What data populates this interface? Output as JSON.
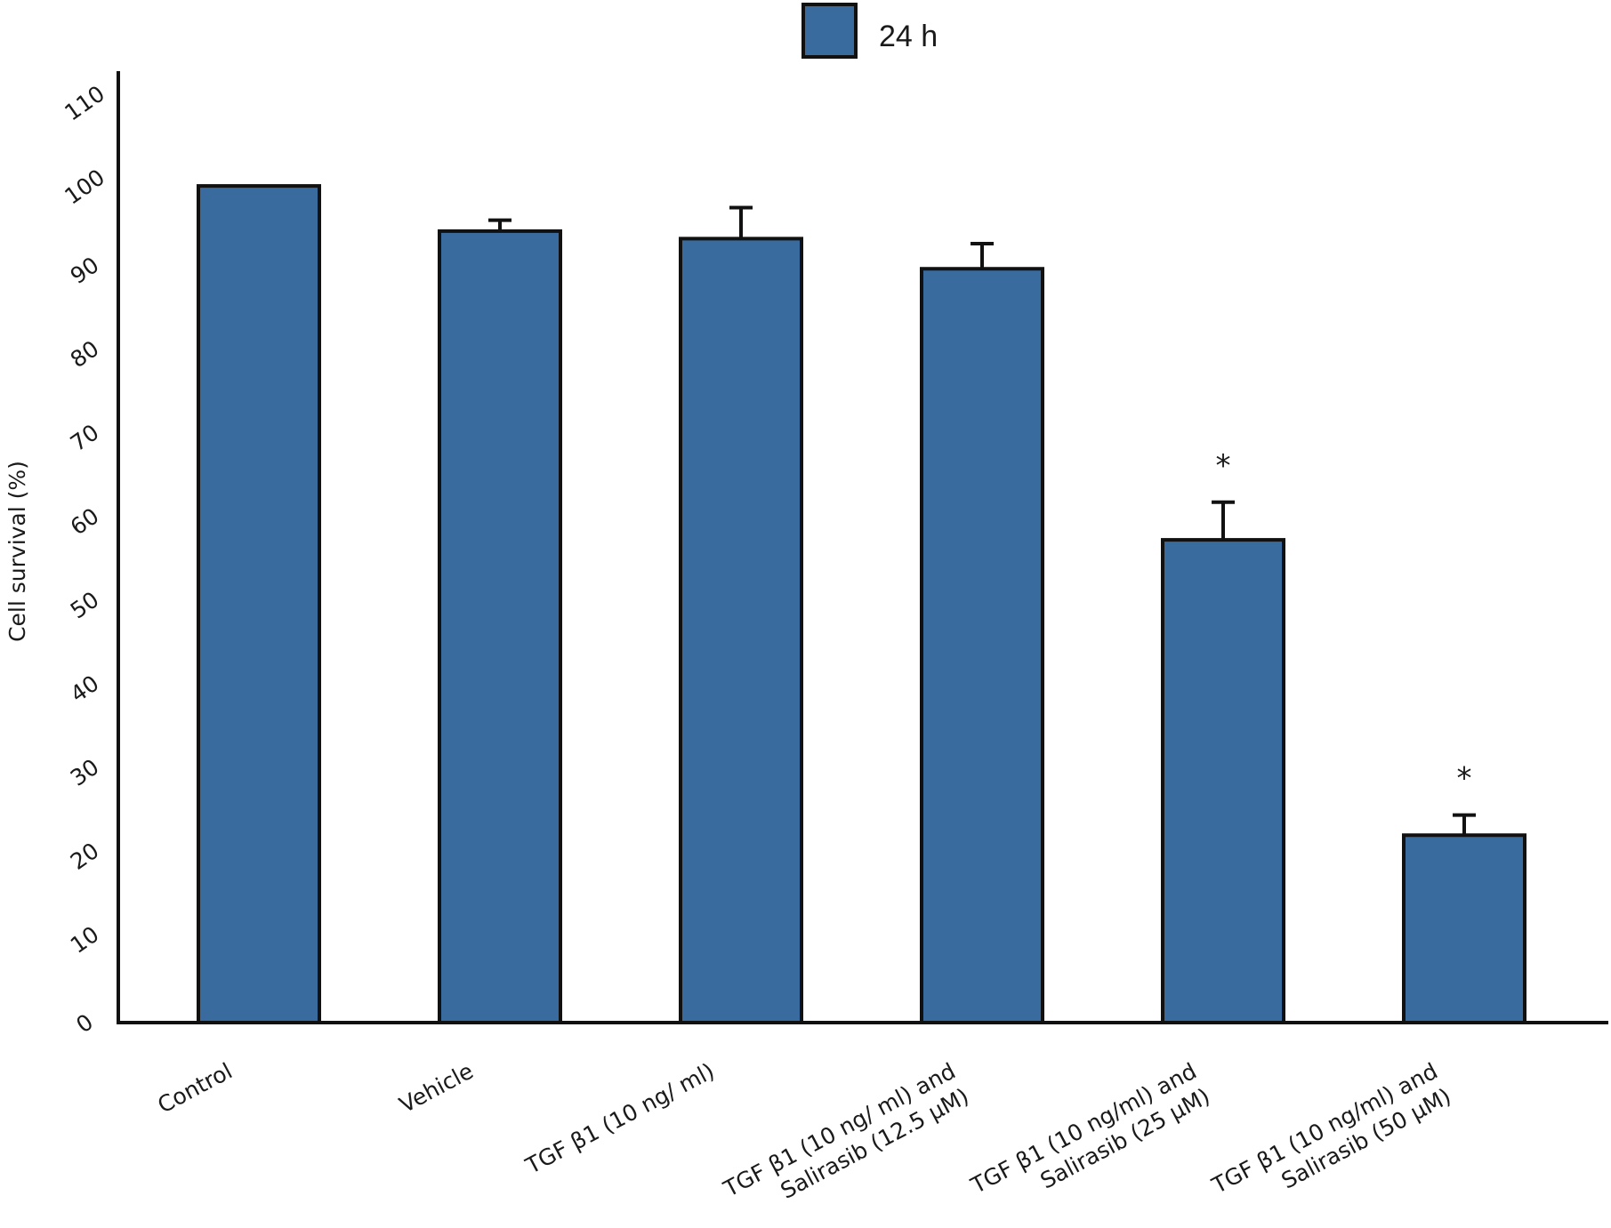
{
  "chart_data": {
    "type": "bar",
    "title": "",
    "xlabel": "",
    "ylabel": "Cell survival (%)",
    "ylim": [
      0,
      110
    ],
    "yticks": [
      0,
      10,
      20,
      30,
      40,
      50,
      60,
      70,
      80,
      90,
      100,
      110
    ],
    "grid": false,
    "legend": {
      "position": "top-center",
      "entries": [
        "24 h"
      ]
    },
    "bar_color": "#3a6b9f",
    "categories": [
      [
        "Control"
      ],
      [
        "Vehicle"
      ],
      [
        "TGF β1 (10 ng/ ml)"
      ],
      [
        "TGF β1 (10 ng/ ml) and",
        "Salirasib (12.5 µM)"
      ],
      [
        "TGF β1 (10 ng/ml) and",
        "Salirasib (25 µM)"
      ],
      [
        "TGF β1 (10 ng/ml) and",
        "Salirasib (50 µM)"
      ]
    ],
    "series": [
      {
        "name": "24 h",
        "values": [
          100,
          94.6,
          93.7,
          90.1,
          57.7,
          22.4
        ],
        "errors": [
          0,
          1.3,
          3.7,
          3.0,
          4.5,
          2.4
        ],
        "annotations": [
          "",
          "",
          "",
          "",
          "*",
          "*"
        ]
      }
    ]
  }
}
